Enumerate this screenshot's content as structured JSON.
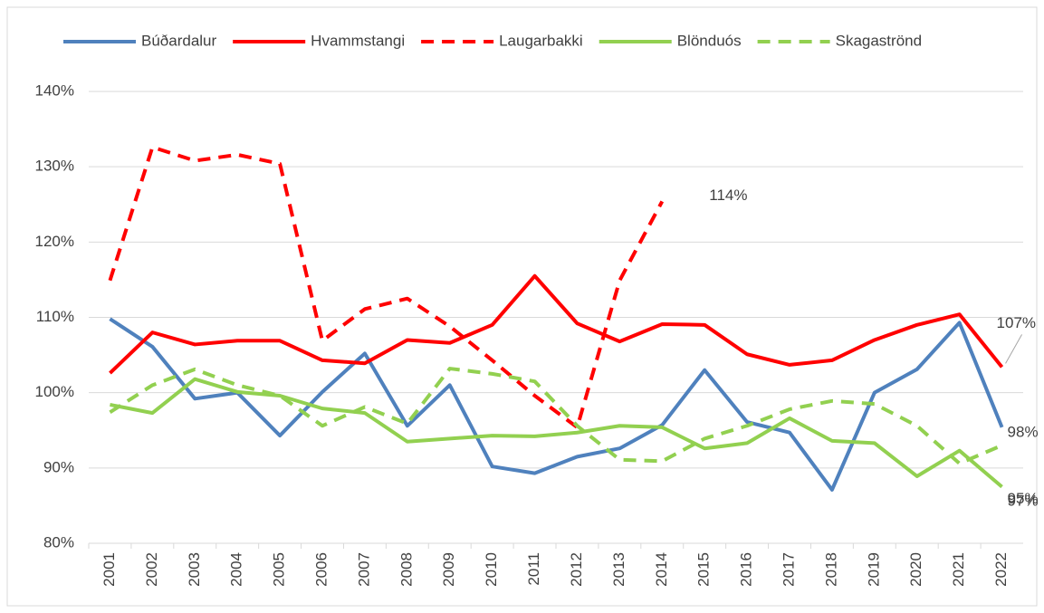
{
  "chart_data": {
    "type": "line",
    "categories": [
      "2001",
      "2002",
      "2003",
      "2004",
      "2005",
      "2006",
      "2007",
      "2008",
      "2009",
      "2010",
      "2011",
      "2012",
      "2013",
      "2014",
      "2015",
      "2016",
      "2017",
      "2018",
      "2019",
      "2020",
      "2021",
      "2022"
    ],
    "series": [
      {
        "name": "Búðardalur",
        "color": "#4f81bd",
        "dashed": false,
        "end_label": "98%",
        "values": [
          109.8,
          106.1,
          99.2,
          100.0,
          94.3,
          100.1,
          105.2,
          95.6,
          101.0,
          90.2,
          89.3,
          91.5,
          92.6,
          95.7,
          103.0,
          96.1,
          94.7,
          87.1,
          100.0,
          103.1,
          109.3,
          95.4
        ]
      },
      {
        "name": "Hvammstangi",
        "color": "#ff0000",
        "dashed": false,
        "end_label": "107%",
        "values": [
          102.6,
          108.0,
          106.4,
          106.9,
          106.9,
          104.3,
          103.9,
          107.0,
          106.6,
          109.0,
          115.5,
          109.2,
          106.8,
          109.1,
          109.0,
          105.1,
          103.7,
          104.3,
          107.0,
          109.0,
          110.4,
          103.4
        ]
      },
      {
        "name": "Laugarbakki",
        "color": "#ff0000",
        "dashed": true,
        "end_label": "114%",
        "values": [
          114.9,
          132.6,
          130.8,
          131.6,
          130.4,
          106.9,
          111.1,
          112.5,
          108.8,
          104.3,
          99.6,
          95.4,
          114.9,
          125.4,
          null,
          null,
          null,
          null,
          null,
          null,
          null,
          null
        ]
      },
      {
        "name": "Blönduós",
        "color": "#92d050",
        "dashed": false,
        "end_label": "95%",
        "values": [
          98.4,
          97.3,
          101.8,
          100.1,
          99.6,
          97.9,
          97.3,
          93.5,
          93.9,
          94.3,
          94.2,
          94.7,
          95.6,
          95.4,
          92.6,
          93.3,
          96.6,
          93.6,
          93.3,
          88.9,
          92.3,
          87.5
        ]
      },
      {
        "name": "Skagaströnd",
        "color": "#92d050",
        "dashed": true,
        "end_label": "97%",
        "values": [
          97.4,
          101.0,
          103.1,
          101.0,
          99.6,
          95.6,
          98.1,
          95.9,
          103.2,
          102.5,
          101.5,
          95.6,
          91.1,
          90.9,
          93.9,
          95.6,
          97.8,
          98.9,
          98.5,
          95.6,
          90.6,
          93.0
        ]
      }
    ],
    "ylim": [
      80,
      140
    ],
    "yticks": [
      {
        "value": 80,
        "label": "80%"
      },
      {
        "value": 90,
        "label": "90%"
      },
      {
        "value": 100,
        "label": "100%"
      },
      {
        "value": 110,
        "label": "110%"
      },
      {
        "value": 120,
        "label": "120%"
      },
      {
        "value": 130,
        "label": "130%"
      },
      {
        "value": 140,
        "label": "140%"
      }
    ],
    "grid": true,
    "legend": "top"
  }
}
